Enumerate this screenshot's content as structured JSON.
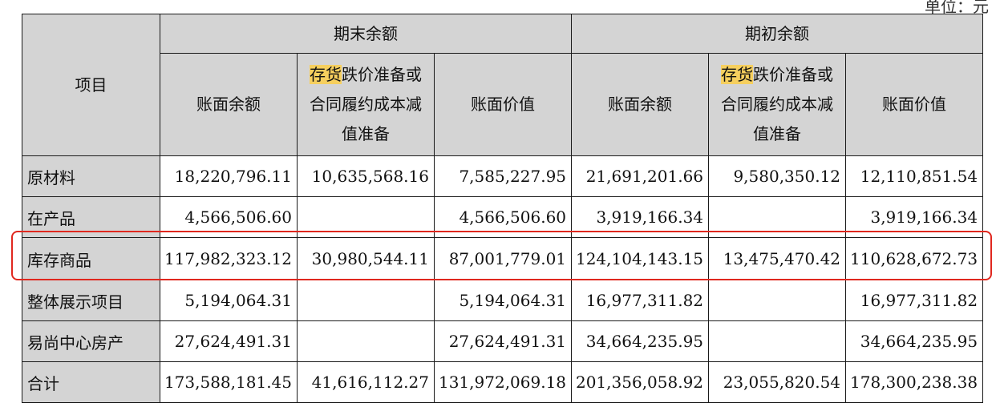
{
  "corner_label": "单位：元",
  "headers": {
    "item": "项目",
    "ending_group": "期末余额",
    "opening_group": "期初余额",
    "book_balance": "账面余额",
    "provision_highlight": "存货",
    "provision_line1_rest": "跌价准备或",
    "provision_line2": "合同履约成本减",
    "provision_line3": "值准备",
    "book_value": "账面价值"
  },
  "rows": [
    {
      "label": "原材料",
      "values": [
        "18,220,796.11",
        "10,635,568.16",
        "7,585,227.95",
        "21,691,201.66",
        "9,580,350.12",
        "12,110,851.54"
      ]
    },
    {
      "label": "在产品",
      "values": [
        "4,566,506.60",
        "",
        "4,566,506.60",
        "3,919,166.34",
        "",
        "3,919,166.34"
      ]
    },
    {
      "label": "库存商品",
      "values": [
        "117,982,323.12",
        "30,980,544.11",
        "87,001,779.01",
        "124,104,143.15",
        "13,475,470.42",
        "110,628,672.73"
      ]
    },
    {
      "label": "整体展示项目",
      "values": [
        "5,194,064.31",
        "",
        "5,194,064.31",
        "16,977,311.82",
        "",
        "16,977,311.82"
      ]
    },
    {
      "label": "易尚中心房产",
      "values": [
        "27,624,491.31",
        "",
        "27,624,491.31",
        "34,664,235.95",
        "",
        "34,664,235.95"
      ]
    },
    {
      "label": "合计",
      "values": [
        "173,588,181.45",
        "41,616,112.27",
        "131,972,069.18",
        "201,356,058.92",
        "23,055,820.54",
        "178,300,238.38"
      ]
    }
  ],
  "highlight_colors": {
    "header_fill": "#d4d4d4",
    "text_highlight": "#f6cf5e",
    "annotation_box": "#e0281f"
  }
}
